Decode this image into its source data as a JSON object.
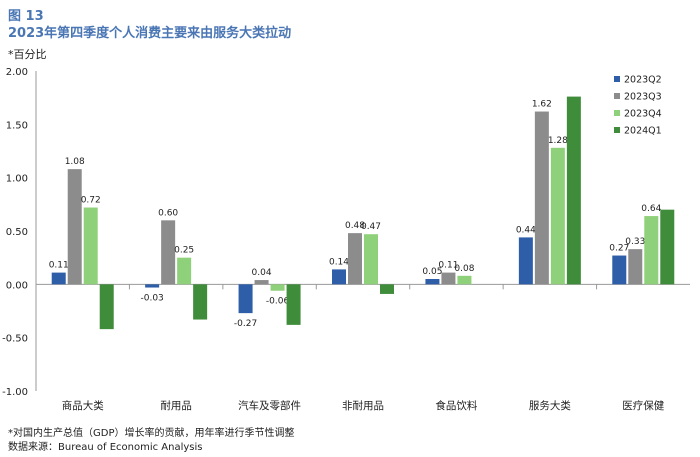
{
  "figure": {
    "label": "图 13",
    "title": "2023年第四季度个人消费主要来由服务大类拉动",
    "unit": "*百分比",
    "footnote": "*对国内生产总值（GDP）增长率的贡献，用年率进行季节性调整",
    "source": "数据来源：Bureau of Economic Analysis"
  },
  "chart_data": {
    "type": "bar",
    "categories": [
      "商品大类",
      "耐用品",
      "汽车及零部件",
      "非耐用品",
      "食品饮料",
      "服务大类",
      "医疗保健"
    ],
    "series": [
      {
        "name": "2023Q2",
        "color": "#2e5ea8",
        "values": [
          0.11,
          -0.03,
          -0.27,
          0.14,
          0.05,
          0.44,
          0.27
        ],
        "labeled": true
      },
      {
        "name": "2023Q3",
        "color": "#8c8c8c",
        "values": [
          1.08,
          0.6,
          0.04,
          0.48,
          0.11,
          1.62,
          0.33
        ],
        "labeled": true
      },
      {
        "name": "2023Q4",
        "color": "#8fd17a",
        "values": [
          0.72,
          0.25,
          -0.06,
          0.47,
          0.08,
          1.28,
          0.64
        ],
        "labeled": true
      },
      {
        "name": "2024Q1",
        "color": "#3f8c3b",
        "values": [
          -0.42,
          -0.33,
          -0.38,
          -0.09,
          null,
          1.76,
          0.7
        ],
        "labeled": false
      }
    ],
    "ylim": [
      -1.0,
      2.0
    ],
    "yticks": [
      "2.00",
      "1.50",
      "1.00",
      "0.50",
      "0.00",
      "-0.50",
      "-1.00"
    ],
    "grid": false,
    "legend": "top-right"
  }
}
